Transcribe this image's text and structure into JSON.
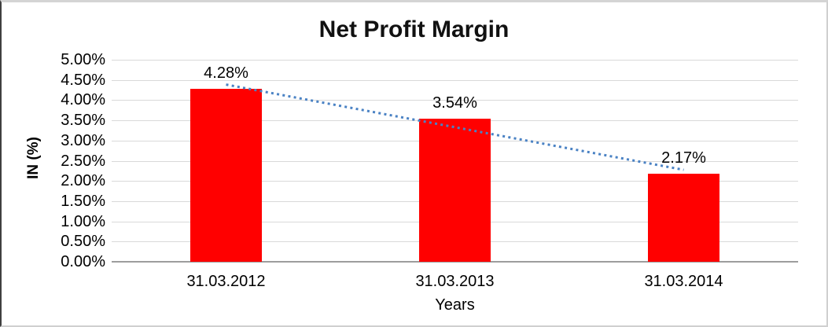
{
  "chart_data": {
    "type": "bar",
    "title": "Net Profit Margin",
    "xlabel": "Years",
    "ylabel": "IN (%)",
    "categories": [
      "31.03.2012",
      "31.03.2013",
      "31.03.2014"
    ],
    "values": [
      4.28,
      3.54,
      2.17
    ],
    "data_labels": [
      "4.28%",
      "3.54%",
      "2.17%"
    ],
    "ylim": [
      0,
      5
    ],
    "ytick_step": 0.5,
    "ytick_labels": [
      "5.00%",
      "4.50%",
      "4.00%",
      "3.50%",
      "3.00%",
      "2.50%",
      "2.00%",
      "1.50%",
      "1.00%",
      "0.50%",
      "0.00%"
    ],
    "grid": true,
    "legend": "none",
    "colors": {
      "bar": "#ff0000",
      "trendline": "#4a82c4",
      "gridline": "#d9d9d9",
      "axis_line": "#9d9d9d",
      "text": "#000000"
    },
    "trendline": {
      "type": "linear",
      "style": "dotted"
    }
  }
}
